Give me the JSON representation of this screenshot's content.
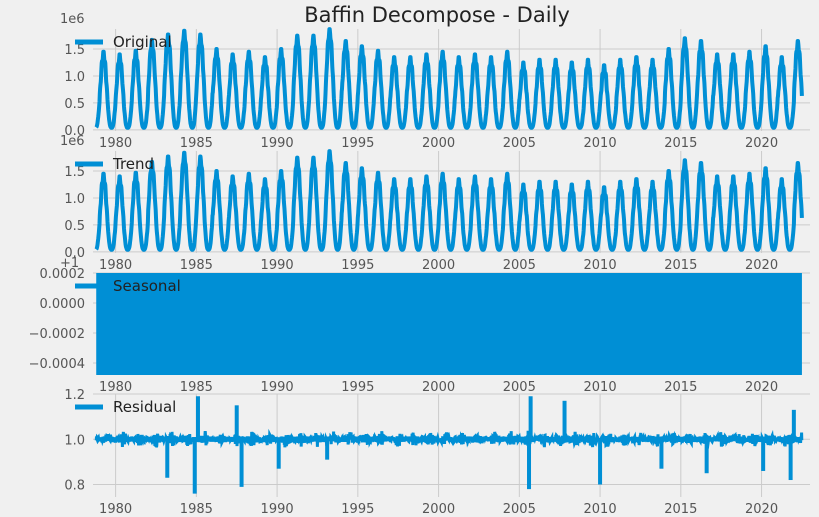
{
  "figure": {
    "title": "Baffin Decompose - Daily",
    "background": "#f0f0f0",
    "line_color": "#008fd5",
    "grid_color": "#cbcbcb",
    "text_color": "#555555"
  },
  "chart_data": [
    {
      "type": "line",
      "legend": "Original",
      "legend_position": "upper-left",
      "offset_label": "1e6",
      "xlim": [
        1978.6,
        2023.0
      ],
      "ylim": [
        -0.02,
        1.87
      ],
      "x_ticks": [
        1980,
        1985,
        1990,
        1995,
        2000,
        2005,
        2010,
        2015,
        2020
      ],
      "y_ticks": [
        0.0,
        0.5,
        1.0,
        1.5
      ],
      "y_tick_labels": [
        "0.0",
        "0.5",
        "1.0",
        "1.5"
      ],
      "grid": true,
      "series": [
        {
          "start_year": 1978.8,
          "end_year": 2022.5,
          "annual_minimum": 0.04,
          "annual_peaks": [
            [
              1979,
              1.4
            ],
            [
              1980,
              1.35
            ],
            [
              1981,
              1.42
            ],
            [
              1982,
              1.62
            ],
            [
              1983,
              1.72
            ],
            [
              1984,
              1.79
            ],
            [
              1985,
              1.72
            ],
            [
              1986,
              1.45
            ],
            [
              1987,
              1.35
            ],
            [
              1988,
              1.4
            ],
            [
              1989,
              1.3
            ],
            [
              1990,
              1.45
            ],
            [
              1991,
              1.7
            ],
            [
              1992,
              1.7
            ],
            [
              1993,
              1.82
            ],
            [
              1994,
              1.6
            ],
            [
              1995,
              1.5
            ],
            [
              1996,
              1.42
            ],
            [
              1997,
              1.3
            ],
            [
              1998,
              1.3
            ],
            [
              1999,
              1.35
            ],
            [
              2000,
              1.4
            ],
            [
              2001,
              1.3
            ],
            [
              2002,
              1.35
            ],
            [
              2003,
              1.3
            ],
            [
              2004,
              1.4
            ],
            [
              2005,
              1.2
            ],
            [
              2006,
              1.25
            ],
            [
              2007,
              1.25
            ],
            [
              2008,
              1.2
            ],
            [
              2009,
              1.25
            ],
            [
              2010,
              1.15
            ],
            [
              2011,
              1.25
            ],
            [
              2012,
              1.3
            ],
            [
              2013,
              1.25
            ],
            [
              2014,
              1.45
            ],
            [
              2015,
              1.65
            ],
            [
              2016,
              1.6
            ],
            [
              2017,
              1.35
            ],
            [
              2018,
              1.35
            ],
            [
              2019,
              1.4
            ],
            [
              2020,
              1.5
            ],
            [
              2021,
              1.3
            ],
            [
              2022,
              1.6
            ]
          ]
        }
      ]
    },
    {
      "type": "line",
      "legend": "Trend",
      "legend_position": "upper-left",
      "offset_label": "1e6",
      "xlim": [
        1978.6,
        2023.0
      ],
      "ylim": [
        -0.02,
        1.87
      ],
      "x_ticks": [
        1980,
        1985,
        1990,
        1995,
        2000,
        2005,
        2010,
        2015,
        2020
      ],
      "y_ticks": [
        0.0,
        0.5,
        1.0,
        1.5
      ],
      "y_tick_labels": [
        "0.0",
        "0.5",
        "1.0",
        "1.5"
      ],
      "grid": true,
      "series": [
        {
          "start_year": 1978.8,
          "end_year": 2022.5,
          "annual_minimum": 0.04,
          "annual_peaks": [
            [
              1979,
              1.4
            ],
            [
              1980,
              1.35
            ],
            [
              1981,
              1.42
            ],
            [
              1982,
              1.62
            ],
            [
              1983,
              1.72
            ],
            [
              1984,
              1.79
            ],
            [
              1985,
              1.72
            ],
            [
              1986,
              1.45
            ],
            [
              1987,
              1.35
            ],
            [
              1988,
              1.4
            ],
            [
              1989,
              1.3
            ],
            [
              1990,
              1.45
            ],
            [
              1991,
              1.7
            ],
            [
              1992,
              1.7
            ],
            [
              1993,
              1.82
            ],
            [
              1994,
              1.6
            ],
            [
              1995,
              1.5
            ],
            [
              1996,
              1.42
            ],
            [
              1997,
              1.3
            ],
            [
              1998,
              1.3
            ],
            [
              1999,
              1.35
            ],
            [
              2000,
              1.4
            ],
            [
              2001,
              1.3
            ],
            [
              2002,
              1.35
            ],
            [
              2003,
              1.3
            ],
            [
              2004,
              1.4
            ],
            [
              2005,
              1.2
            ],
            [
              2006,
              1.25
            ],
            [
              2007,
              1.25
            ],
            [
              2008,
              1.2
            ],
            [
              2009,
              1.25
            ],
            [
              2010,
              1.15
            ],
            [
              2011,
              1.25
            ],
            [
              2012,
              1.3
            ],
            [
              2013,
              1.25
            ],
            [
              2014,
              1.45
            ],
            [
              2015,
              1.65
            ],
            [
              2016,
              1.6
            ],
            [
              2017,
              1.35
            ],
            [
              2018,
              1.35
            ],
            [
              2019,
              1.4
            ],
            [
              2020,
              1.5
            ],
            [
              2021,
              1.3
            ],
            [
              2022,
              1.6
            ]
          ]
        }
      ]
    },
    {
      "type": "area",
      "legend": "Seasonal",
      "legend_position": "upper-left",
      "offset_label": "+1",
      "xlim": [
        1978.6,
        2023.0
      ],
      "ylim": [
        -0.00048,
        0.0002
      ],
      "x_ticks": [
        1980,
        1985,
        1990,
        1995,
        2000,
        2005,
        2010,
        2015,
        2020
      ],
      "y_ticks": [
        0.0002,
        0.0,
        -0.0002,
        -0.0004
      ],
      "y_tick_labels": [
        "0.0002",
        "0.0000",
        "−0.0002",
        "−0.0004"
      ],
      "grid": true,
      "series": [
        {
          "start_year": 1978.8,
          "end_year": 2022.5,
          "band_min": -0.00048,
          "band_max": 0.0002
        }
      ]
    },
    {
      "type": "line",
      "legend": "Residual",
      "legend_position": "upper-left",
      "offset_label": "",
      "xlim": [
        1978.6,
        2023.0
      ],
      "ylim": [
        0.745,
        1.2
      ],
      "x_ticks": [
        1980,
        1985,
        1990,
        1995,
        2000,
        2005,
        2010,
        2015,
        2020
      ],
      "y_ticks": [
        0.8,
        1.0,
        1.2
      ],
      "y_tick_labels": [
        "0.8",
        "1.0",
        "1.2"
      ],
      "grid": true,
      "series": [
        {
          "start_year": 1978.8,
          "end_year": 2022.5,
          "baseline": 1.0,
          "spikes": [
            [
              1984.9,
              0.76
            ],
            [
              1985.1,
              1.19
            ],
            [
              1987.8,
              0.79
            ],
            [
              1987.5,
              1.15
            ],
            [
              1983.2,
              0.83
            ],
            [
              1990.1,
              0.87
            ],
            [
              1993.1,
              0.91
            ],
            [
              2005.6,
              0.78
            ],
            [
              2005.7,
              1.19
            ],
            [
              2007.8,
              1.17
            ],
            [
              2010.0,
              0.8
            ],
            [
              2013.8,
              0.87
            ],
            [
              2016.6,
              0.85
            ],
            [
              2020.1,
              0.86
            ],
            [
              2021.8,
              0.82
            ],
            [
              2022.0,
              1.13
            ]
          ]
        }
      ]
    }
  ]
}
